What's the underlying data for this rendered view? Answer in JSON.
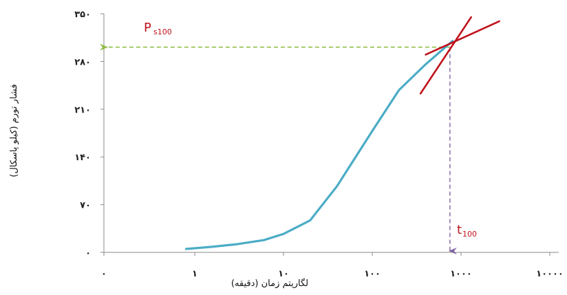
{
  "chart_data": {
    "type": "line",
    "title": "",
    "xlabel": "لگاریتم زمان (دقیقه)",
    "ylabel": "فشار تورم (کیلو پاسکال)",
    "x_scale": "log",
    "x_ticks": [
      0,
      1,
      10,
      100,
      1000,
      10000
    ],
    "x_tick_labels": [
      "۰",
      "۱",
      "۱۰",
      "۱۰۰",
      "۱۰۰۰",
      "۱۰۰۰۰"
    ],
    "y_ticks": [
      0,
      70,
      140,
      210,
      280,
      350
    ],
    "y_tick_labels": [
      "۰",
      "۷۰",
      "۱۴۰",
      "۲۱۰",
      "۲۸۰",
      "۳۵۰"
    ],
    "ylim": [
      0,
      350
    ],
    "grid": false,
    "series": [
      {
        "color": "#4bacc6",
        "x": [
          0.8,
          1.5,
          3,
          6,
          10,
          20,
          40,
          100,
          200,
          400,
          800
        ],
        "y": [
          5,
          8,
          12,
          18,
          27,
          47,
          97,
          178,
          238,
          276,
          310
        ]
      }
    ],
    "tangents": [
      {
        "color": "#c0121b",
        "x": [
          350,
          1300
        ],
        "y": [
          233,
          345
        ]
      },
      {
        "color": "#c0121b",
        "x": [
          400,
          2700
        ],
        "y": [
          290,
          339
        ]
      }
    ],
    "annotations": {
      "p_label": "P",
      "p_sub": "s100",
      "t_label": "t",
      "t_sub": "100",
      "intersection_x": 750,
      "intersection_y": 301,
      "h_guide_color": "#8fbc45",
      "v_guide_color": "#8064a2"
    }
  }
}
